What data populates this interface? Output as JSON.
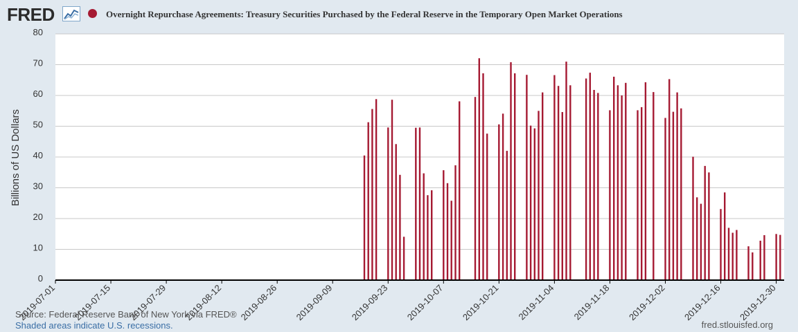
{
  "header": {
    "logo_text": "FRED",
    "logo_icon": "line-graph-icon",
    "title": "Overnight Repurchase Agreements: Treasury Securities Purchased by the Federal Reserve in the Temporary Open Market Operations"
  },
  "footer": {
    "source": "Source: Federal Reserve Bank of New York via FRED®",
    "recessions": "Shaded areas indicate U.S. recessions.",
    "site": "fred.stlouisfed.org"
  },
  "colors": {
    "series": "#a51a32",
    "background": "#e1e9f0",
    "plot_bg": "#ffffff",
    "grid": "#c8c8c8"
  },
  "chart_data": {
    "type": "bar",
    "title": "Overnight Repurchase Agreements: Treasury Securities Purchased by the Federal Reserve in the Temporary Open Market Operations",
    "ylabel": "Billions of US Dollars",
    "xlabel": "",
    "ylim": [
      0,
      80
    ],
    "yticks": [
      0,
      10,
      20,
      30,
      40,
      50,
      60,
      70,
      80
    ],
    "x_range": [
      "2019-07-01",
      "2020-01-01"
    ],
    "xticks": [
      "2019-07-01",
      "2019-07-15",
      "2019-07-29",
      "2019-08-12",
      "2019-08-26",
      "2019-09-09",
      "2019-09-23",
      "2019-10-07",
      "2019-10-21",
      "2019-11-04",
      "2019-11-18",
      "2019-12-02",
      "2019-12-16",
      "2019-12-30"
    ],
    "grid": true,
    "series": [
      {
        "name": "Overnight Repurchase Agreements",
        "x": [
          "2019-09-17",
          "2019-09-18",
          "2019-09-19",
          "2019-09-20",
          "2019-09-23",
          "2019-09-24",
          "2019-09-25",
          "2019-09-26",
          "2019-09-27",
          "2019-09-30",
          "2019-10-01",
          "2019-10-02",
          "2019-10-03",
          "2019-10-04",
          "2019-10-07",
          "2019-10-08",
          "2019-10-09",
          "2019-10-10",
          "2019-10-11",
          "2019-10-15",
          "2019-10-16",
          "2019-10-17",
          "2019-10-18",
          "2019-10-21",
          "2019-10-22",
          "2019-10-23",
          "2019-10-24",
          "2019-10-25",
          "2019-10-28",
          "2019-10-29",
          "2019-10-30",
          "2019-10-31",
          "2019-11-01",
          "2019-11-04",
          "2019-11-05",
          "2019-11-06",
          "2019-11-07",
          "2019-11-08",
          "2019-11-12",
          "2019-11-13",
          "2019-11-14",
          "2019-11-15",
          "2019-11-18",
          "2019-11-19",
          "2019-11-20",
          "2019-11-21",
          "2019-11-22",
          "2019-11-25",
          "2019-11-26",
          "2019-11-27",
          "2019-11-29",
          "2019-12-02",
          "2019-12-03",
          "2019-12-04",
          "2019-12-05",
          "2019-12-06",
          "2019-12-09",
          "2019-12-10",
          "2019-12-11",
          "2019-12-12",
          "2019-12-13",
          "2019-12-16",
          "2019-12-17",
          "2019-12-18",
          "2019-12-19",
          "2019-12-20",
          "2019-12-23",
          "2019-12-24",
          "2019-12-26",
          "2019-12-27",
          "2019-12-30",
          "2019-12-31"
        ],
        "values": [
          40.5,
          51.3,
          55.6,
          58.8,
          49.6,
          58.6,
          44.2,
          34.2,
          14.1,
          49.5,
          49.6,
          34.7,
          27.6,
          29.2,
          35.7,
          31.5,
          25.8,
          37.3,
          58.1,
          59.5,
          72.1,
          67.2,
          47.6,
          50.6,
          54.1,
          42.0,
          70.8,
          67.2,
          66.7,
          50.2,
          49.3,
          55.0,
          61.0,
          66.6,
          63.1,
          54.6,
          71.0,
          63.3,
          65.5,
          67.4,
          61.8,
          60.8,
          55.2,
          66.1,
          63.3,
          60.0,
          64.1,
          55.2,
          56.2,
          64.3,
          61.1,
          52.7,
          65.3,
          54.7,
          61.0,
          55.8,
          40.1,
          26.9,
          24.8,
          37.1,
          35.0,
          23.1,
          28.5,
          17.0,
          15.4,
          16.3,
          11.0,
          9.0,
          12.8,
          14.6,
          15.0,
          14.7
        ]
      }
    ]
  }
}
